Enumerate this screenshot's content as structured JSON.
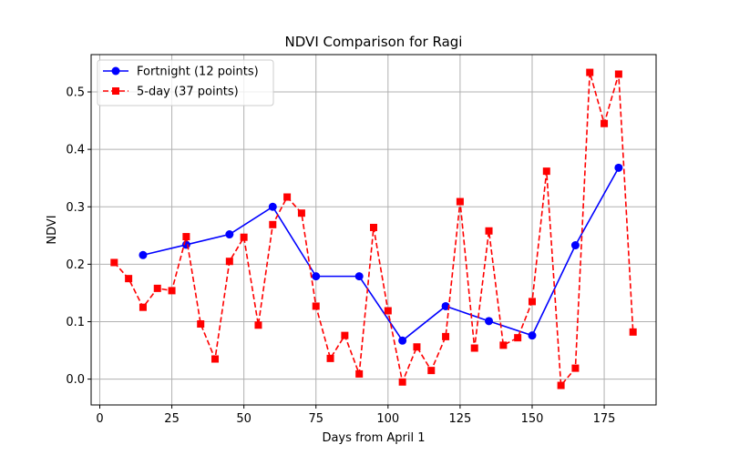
{
  "chart_data": {
    "type": "line",
    "title": "NDVI Comparison for Ragi",
    "xlabel": "Days from April 1",
    "ylabel": "NDVI",
    "xlim": [
      -3,
      193
    ],
    "ylim": [
      -0.045,
      0.565
    ],
    "xticks": [
      0,
      25,
      50,
      75,
      100,
      125,
      150,
      175
    ],
    "yticks": [
      0.0,
      0.1,
      0.2,
      0.3,
      0.4,
      0.5
    ],
    "grid": true,
    "legend_position": "top-left",
    "series": [
      {
        "name": "Fortnight (12 points)",
        "color": "#0000ff",
        "marker": "circle",
        "linestyle": "solid",
        "x": [
          15,
          30,
          45,
          60,
          75,
          90,
          105,
          120,
          135,
          150,
          165,
          180
        ],
        "y": [
          0.216,
          0.234,
          0.252,
          0.3,
          0.179,
          0.179,
          0.067,
          0.127,
          0.101,
          0.076,
          0.233,
          0.368
        ]
      },
      {
        "name": "5-day (37 points)",
        "color": "#ff0000",
        "marker": "square",
        "linestyle": "dashed",
        "x": [
          5,
          10,
          15,
          20,
          25,
          30,
          35,
          40,
          45,
          50,
          55,
          60,
          65,
          70,
          75,
          80,
          85,
          90,
          95,
          100,
          105,
          110,
          115,
          120,
          125,
          130,
          135,
          140,
          145,
          150,
          155,
          160,
          165,
          170,
          175,
          180,
          185
        ],
        "y": [
          0.203,
          0.175,
          0.125,
          0.158,
          0.154,
          0.248,
          0.096,
          0.035,
          0.205,
          0.247,
          0.094,
          0.269,
          0.317,
          0.289,
          0.127,
          0.036,
          0.076,
          0.009,
          0.264,
          0.119,
          -0.005,
          0.056,
          0.015,
          0.074,
          0.309,
          0.054,
          0.258,
          0.059,
          0.072,
          0.135,
          0.362,
          -0.011,
          0.019,
          0.534,
          0.445,
          0.531,
          0.082
        ]
      }
    ]
  }
}
